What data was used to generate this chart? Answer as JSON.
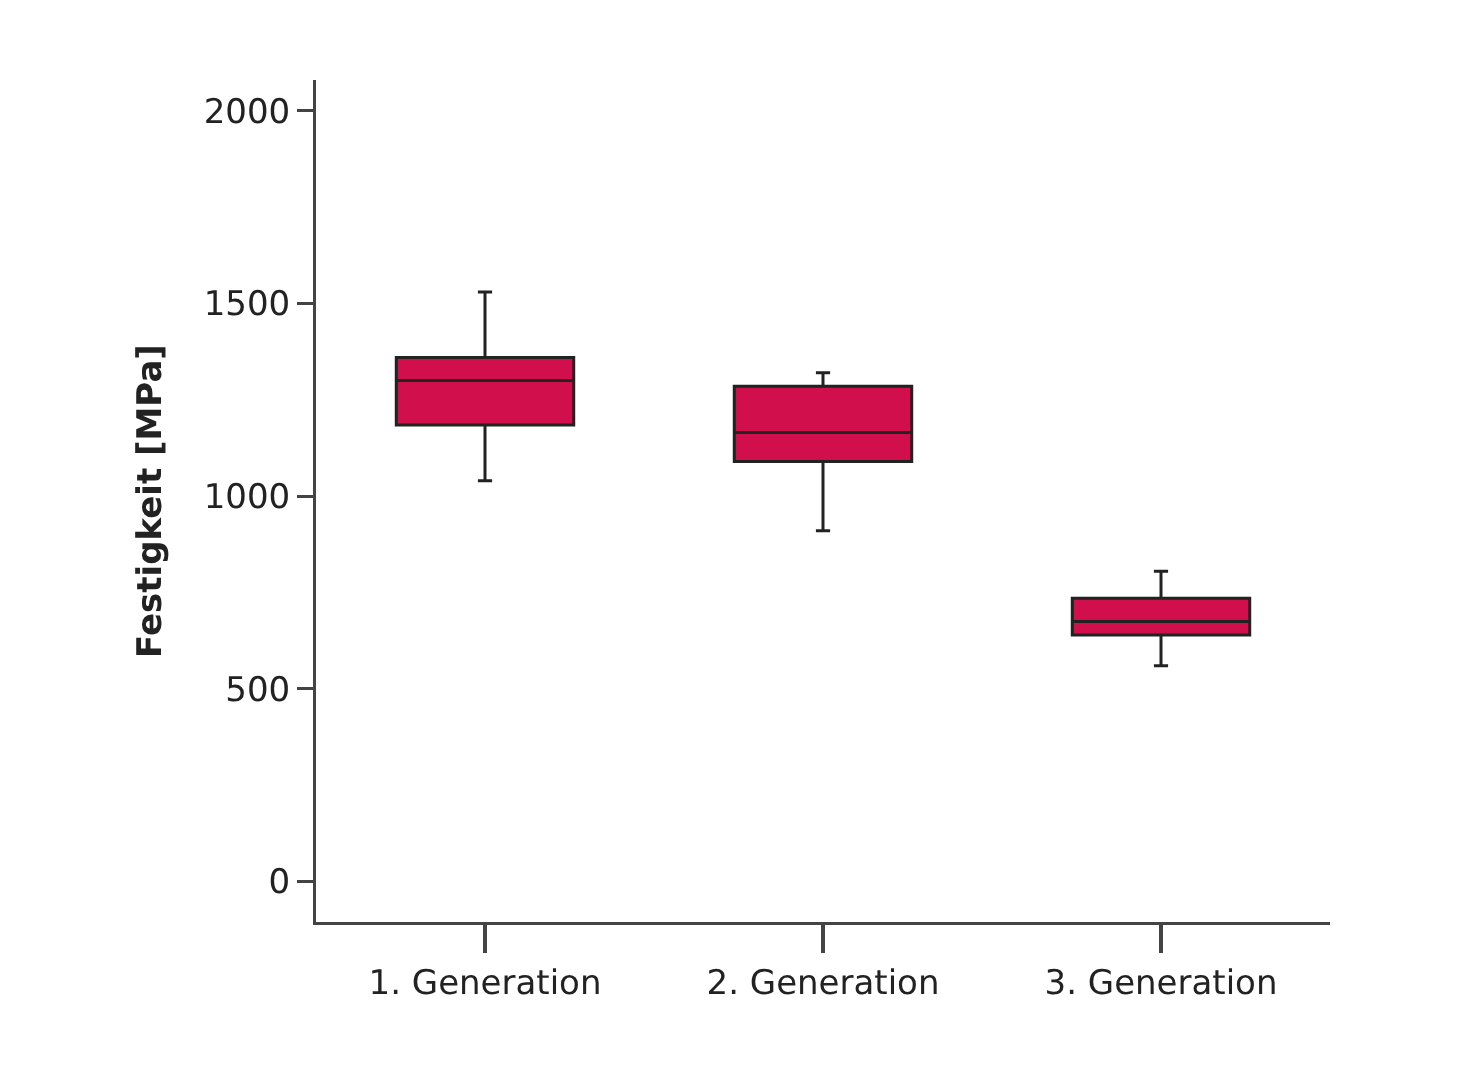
{
  "chart_data": {
    "type": "box",
    "ylabel": "Festigkeit [MPa]",
    "categories": [
      "1. Generation",
      "2. Generation",
      "3. Generation"
    ],
    "series": [
      {
        "color": "#d00f4c",
        "boxes": [
          {
            "low": 1040,
            "q1": 1185,
            "median": 1300,
            "q3": 1360,
            "high": 1530
          },
          {
            "low": 910,
            "q1": 1090,
            "median": 1165,
            "q3": 1285,
            "high": 1320
          },
          {
            "low": 560,
            "q1": 640,
            "median": 675,
            "q3": 735,
            "high": 805
          }
        ]
      }
    ],
    "ylim": [
      -105,
      2080
    ],
    "yticks": [
      0,
      500,
      1000,
      1500,
      2000
    ],
    "grid": false
  }
}
